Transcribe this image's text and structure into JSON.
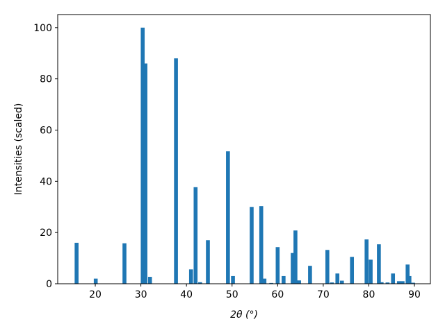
{
  "chart_data": {
    "type": "bar",
    "x_label": "2θ (°)",
    "y_label": "Intensities (scaled)",
    "x": [
      15.9,
      20.1,
      26.4,
      30.4,
      31.0,
      32.0,
      37.7,
      41.0,
      42.0,
      43.0,
      44.7,
      49.1,
      50.2,
      54.3,
      56.4,
      57.1,
      58.6,
      60.0,
      61.3,
      63.3,
      63.9,
      64.7,
      67.1,
      70.9,
      71.9,
      73.1,
      74.1,
      76.3,
      79.5,
      80.4,
      82.2,
      82.8,
      84.1,
      85.3,
      86.6,
      87.4,
      88.5,
      88.9,
      89.7
    ],
    "values": [
      16,
      2,
      15.8,
      100,
      86,
      2.7,
      88,
      5.6,
      37.7,
      0.6,
      17,
      51.7,
      3,
      30,
      30.3,
      2,
      0.3,
      14.3,
      3,
      12,
      20.8,
      1.3,
      7,
      13.2,
      0.5,
      4,
      1.2,
      10.5,
      17.3,
      9.4,
      15.4,
      0.6,
      0.5,
      4,
      1,
      1,
      7.5,
      3,
      0.4
    ],
    "color": "#1f77b4",
    "xlim": [
      11.76,
      93.5
    ],
    "xticks": [
      20,
      30,
      40,
      50,
      60,
      70,
      80,
      90
    ],
    "ylim": [
      0,
      105.1
    ],
    "yticks": [
      0,
      20,
      40,
      60,
      80,
      100
    ]
  }
}
